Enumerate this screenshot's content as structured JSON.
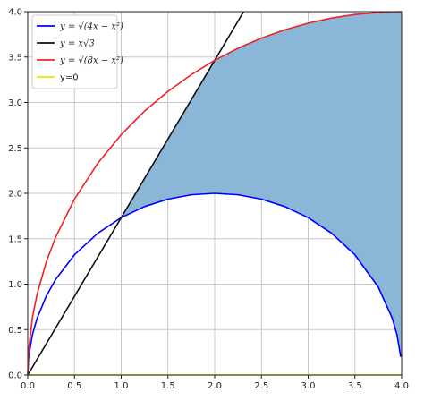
{
  "chart_data": {
    "type": "line",
    "title": "",
    "xlabel": "",
    "ylabel": "",
    "xlim": [
      0.0,
      4.0
    ],
    "ylim": [
      0.0,
      4.0
    ],
    "grid": true,
    "legend_position": "top-left",
    "x_ticks": [
      "0.0",
      "0.5",
      "1.0",
      "1.5",
      "2.0",
      "2.5",
      "3.0",
      "3.5",
      "4.0"
    ],
    "y_ticks": [
      "0.0",
      "0.5",
      "1.0",
      "1.5",
      "2.0",
      "2.5",
      "3.0",
      "3.5",
      "4.0"
    ],
    "x_tick_values": [
      0.0,
      0.5,
      1.0,
      1.5,
      2.0,
      2.5,
      3.0,
      3.5,
      4.0
    ],
    "y_tick_values": [
      0.0,
      0.5,
      1.0,
      1.5,
      2.0,
      2.5,
      3.0,
      3.5,
      4.0
    ],
    "series": [
      {
        "name": "y = √(4x − x²)",
        "color": "#0000ff",
        "x": [
          0.0,
          0.01,
          0.05,
          0.1,
          0.2,
          0.3,
          0.5,
          0.75,
          1.0,
          1.25,
          1.5,
          1.75,
          2.0,
          2.25,
          2.5,
          2.75,
          3.0,
          3.25,
          3.5,
          3.75,
          3.9,
          3.95,
          3.99
        ],
        "y": [
          0.0,
          0.2,
          0.444,
          0.624,
          0.872,
          1.054,
          1.323,
          1.561,
          1.732,
          1.854,
          1.936,
          1.984,
          2.0,
          1.984,
          1.936,
          1.854,
          1.732,
          1.561,
          1.323,
          0.968,
          0.624,
          0.444,
          0.2
        ]
      },
      {
        "name": "y = x√3",
        "color": "#111111",
        "x": [
          0.0,
          2.31
        ],
        "y": [
          0.0,
          4.0
        ]
      },
      {
        "name": "y = √(8x − x²)",
        "color": "#ee2222",
        "x": [
          0.0,
          0.01,
          0.05,
          0.1,
          0.2,
          0.3,
          0.5,
          0.75,
          1.0,
          1.25,
          1.5,
          1.75,
          2.0,
          2.25,
          2.5,
          2.75,
          3.0,
          3.25,
          3.5,
          3.75,
          4.0
        ],
        "y": [
          0.0,
          0.283,
          0.631,
          0.889,
          1.249,
          1.52,
          1.936,
          2.332,
          2.646,
          2.905,
          3.122,
          3.307,
          3.464,
          3.597,
          3.708,
          3.799,
          3.873,
          3.929,
          3.969,
          3.992,
          4.0
        ]
      },
      {
        "name": "y=0",
        "color": "#e6e600",
        "x": [
          0.0,
          4.0
        ],
        "y": [
          0.0,
          0.0
        ]
      }
    ],
    "shaded_region": {
      "color": "#8ab6d8",
      "x": [
        1.0,
        1.25,
        1.5,
        1.75,
        2.0,
        2.25,
        2.5,
        2.75,
        3.0,
        3.25,
        3.5,
        3.75,
        3.9,
        3.95,
        3.99,
        4.0
      ],
      "y_upper": [
        1.732,
        2.165,
        2.598,
        3.031,
        3.464,
        3.597,
        3.708,
        3.799,
        3.873,
        3.929,
        3.969,
        3.992,
        3.998,
        4.0,
        4.0,
        4.0
      ],
      "y_lower": [
        1.732,
        1.854,
        1.936,
        1.984,
        2.0,
        1.984,
        1.936,
        1.854,
        1.732,
        1.561,
        1.323,
        0.968,
        0.624,
        0.444,
        0.2,
        0.2
      ]
    }
  }
}
